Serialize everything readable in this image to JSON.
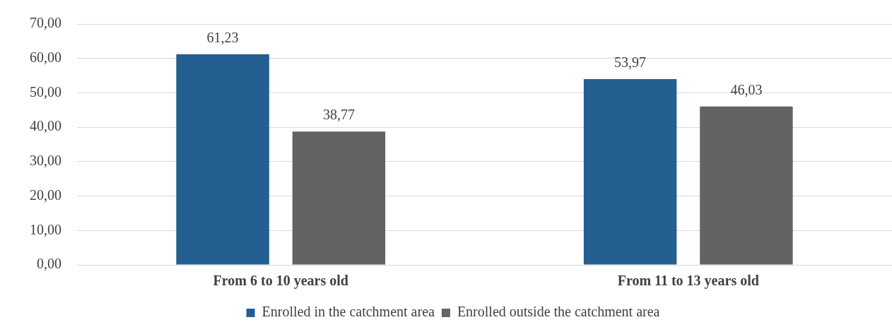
{
  "chart_data": {
    "type": "bar",
    "categories": [
      "From 6 to 10 years old",
      "From 11 to 13 years old"
    ],
    "series": [
      {
        "name": "Enrolled in the catchment area",
        "color": "#255e91",
        "values": [
          61.23,
          53.97
        ],
        "value_labels": [
          "61,23",
          "53,97"
        ]
      },
      {
        "name": "Enrolled outside the catchment area",
        "color": "#636363",
        "values": [
          38.77,
          46.03
        ],
        "value_labels": [
          "38,77",
          "46,03"
        ]
      }
    ],
    "ylim": [
      0,
      70
    ],
    "yticks": [
      {
        "value": 0,
        "label": "0,00"
      },
      {
        "value": 10,
        "label": "10,00"
      },
      {
        "value": 20,
        "label": "20,00"
      },
      {
        "value": 30,
        "label": "30,00"
      },
      {
        "value": 40,
        "label": "40,00"
      },
      {
        "value": 50,
        "label": "50,00"
      },
      {
        "value": 60,
        "label": "60,00"
      },
      {
        "value": 70,
        "label": "70,00"
      }
    ],
    "grid": "y",
    "legend": "bottom"
  }
}
